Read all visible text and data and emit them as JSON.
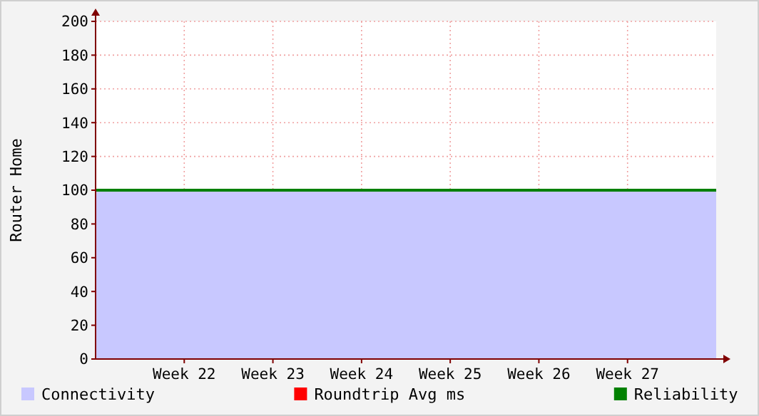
{
  "chart_data": {
    "type": "area",
    "ylabel": "Router Home",
    "categories": [
      null,
      "Week 22",
      "Week 23",
      "Week 24",
      "Week 25",
      "Week 26",
      "Week 27",
      null
    ],
    "ylim": [
      0,
      200
    ],
    "yticks": [
      0,
      20,
      40,
      60,
      80,
      100,
      120,
      140,
      160,
      180,
      200
    ],
    "grid": true,
    "legend": "bottom",
    "series": [
      {
        "name": "Connectivity",
        "color": "#c8c8ff",
        "values": [
          100,
          100,
          100,
          100,
          100,
          100,
          100,
          100
        ]
      },
      {
        "name": "Roundtrip Avg ms",
        "type": "line",
        "color": "#ff0000",
        "values": [
          null,
          null,
          null,
          null,
          null,
          null,
          null,
          null
        ]
      },
      {
        "name": "Reliability",
        "type": "line",
        "color": "#008000",
        "values": [
          100,
          100,
          100,
          100,
          100,
          100,
          100,
          100
        ]
      }
    ]
  }
}
